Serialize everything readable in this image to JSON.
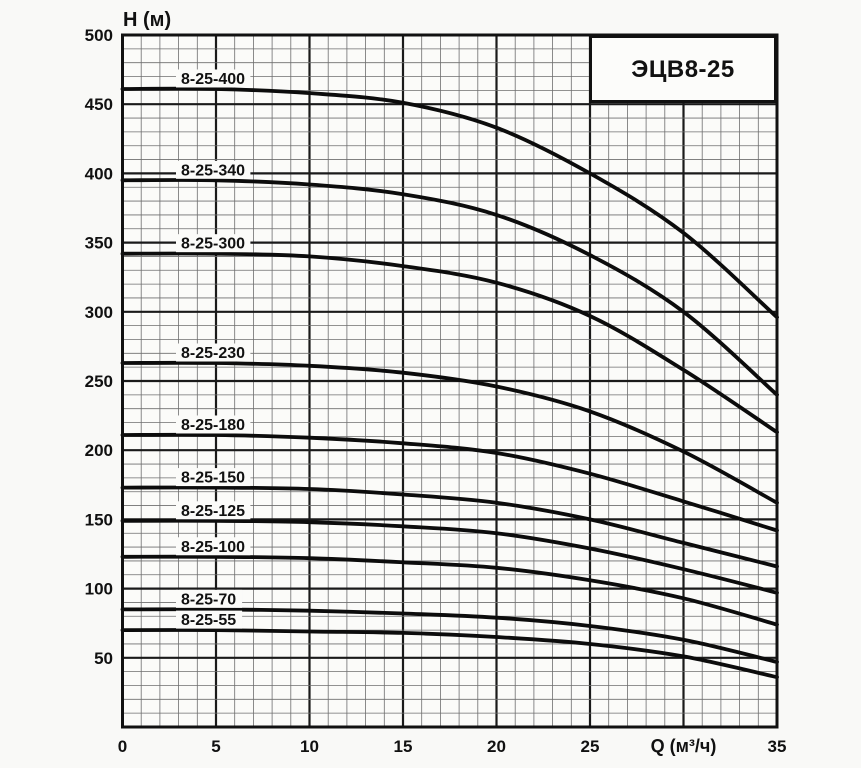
{
  "chart_data": {
    "type": "line",
    "title": "ЭЦВ8-25",
    "xlabel": "Q (м³/ч)",
    "ylabel": "H (м)",
    "xlim": [
      0,
      35
    ],
    "ylim": [
      0,
      500
    ],
    "grid": {
      "x_minor_step": 1,
      "x_major_step": 5,
      "y_minor_step": 10,
      "y_major_step": 50,
      "visible": true
    },
    "x_ticks": [
      {
        "q": 0,
        "label": "0"
      },
      {
        "q": 5,
        "label": "5"
      },
      {
        "q": 10,
        "label": "10"
      },
      {
        "q": 15,
        "label": "15"
      },
      {
        "q": 20,
        "label": "20"
      },
      {
        "q": 25,
        "label": "25"
      },
      {
        "q": 30,
        "label": "Q (м³/ч)",
        "is_axis_unit": true
      },
      {
        "q": 35,
        "label": "35"
      }
    ],
    "y_ticks": [
      500,
      450,
      400,
      350,
      300,
      250,
      200,
      150,
      100,
      50
    ],
    "x": [
      0,
      5,
      10,
      15,
      20,
      25,
      30,
      35
    ],
    "series": [
      {
        "name": "8-25-400",
        "values": [
          461,
          461,
          458,
          451,
          433,
          400,
          357,
          296
        ]
      },
      {
        "name": "8-25-340",
        "values": [
          395,
          395,
          392,
          385,
          370,
          341,
          300,
          240
        ]
      },
      {
        "name": "8-25-300",
        "values": [
          342,
          342,
          340,
          333,
          321,
          297,
          258,
          213
        ]
      },
      {
        "name": "8-25-230",
        "values": [
          263,
          263,
          261,
          256,
          246,
          228,
          199,
          162
        ]
      },
      {
        "name": "8-25-180",
        "values": [
          211,
          211,
          209,
          205,
          198,
          183,
          163,
          142
        ]
      },
      {
        "name": "8-25-150",
        "values": [
          173,
          173,
          172,
          168,
          162,
          150,
          133,
          116
        ]
      },
      {
        "name": "8-25-125",
        "values": [
          149,
          149,
          148,
          145,
          140,
          129,
          114,
          97
        ]
      },
      {
        "name": "8-25-100",
        "values": [
          123,
          123,
          122,
          119,
          115,
          106,
          93,
          74
        ]
      },
      {
        "name": "8-25-70",
        "values": [
          85,
          85,
          84,
          82,
          79,
          73,
          63,
          47
        ]
      },
      {
        "name": "8-25-55",
        "values": [
          70,
          70,
          69,
          68,
          65,
          60,
          51,
          36
        ]
      }
    ],
    "legend_position": "inline-labels-above-curve-start"
  },
  "colors": {
    "background": "#f9f9f7",
    "plot_fill": "#fbfbf9",
    "grid_minor": "#6e6e6e",
    "grid_major": "#1a1a1a",
    "border": "#111111",
    "curve": "#0c0c0c",
    "text": "#111111",
    "label_mask": "#fbfbf9",
    "title_box_fill": "#fcfcfa",
    "title_box_border": "#111111"
  }
}
